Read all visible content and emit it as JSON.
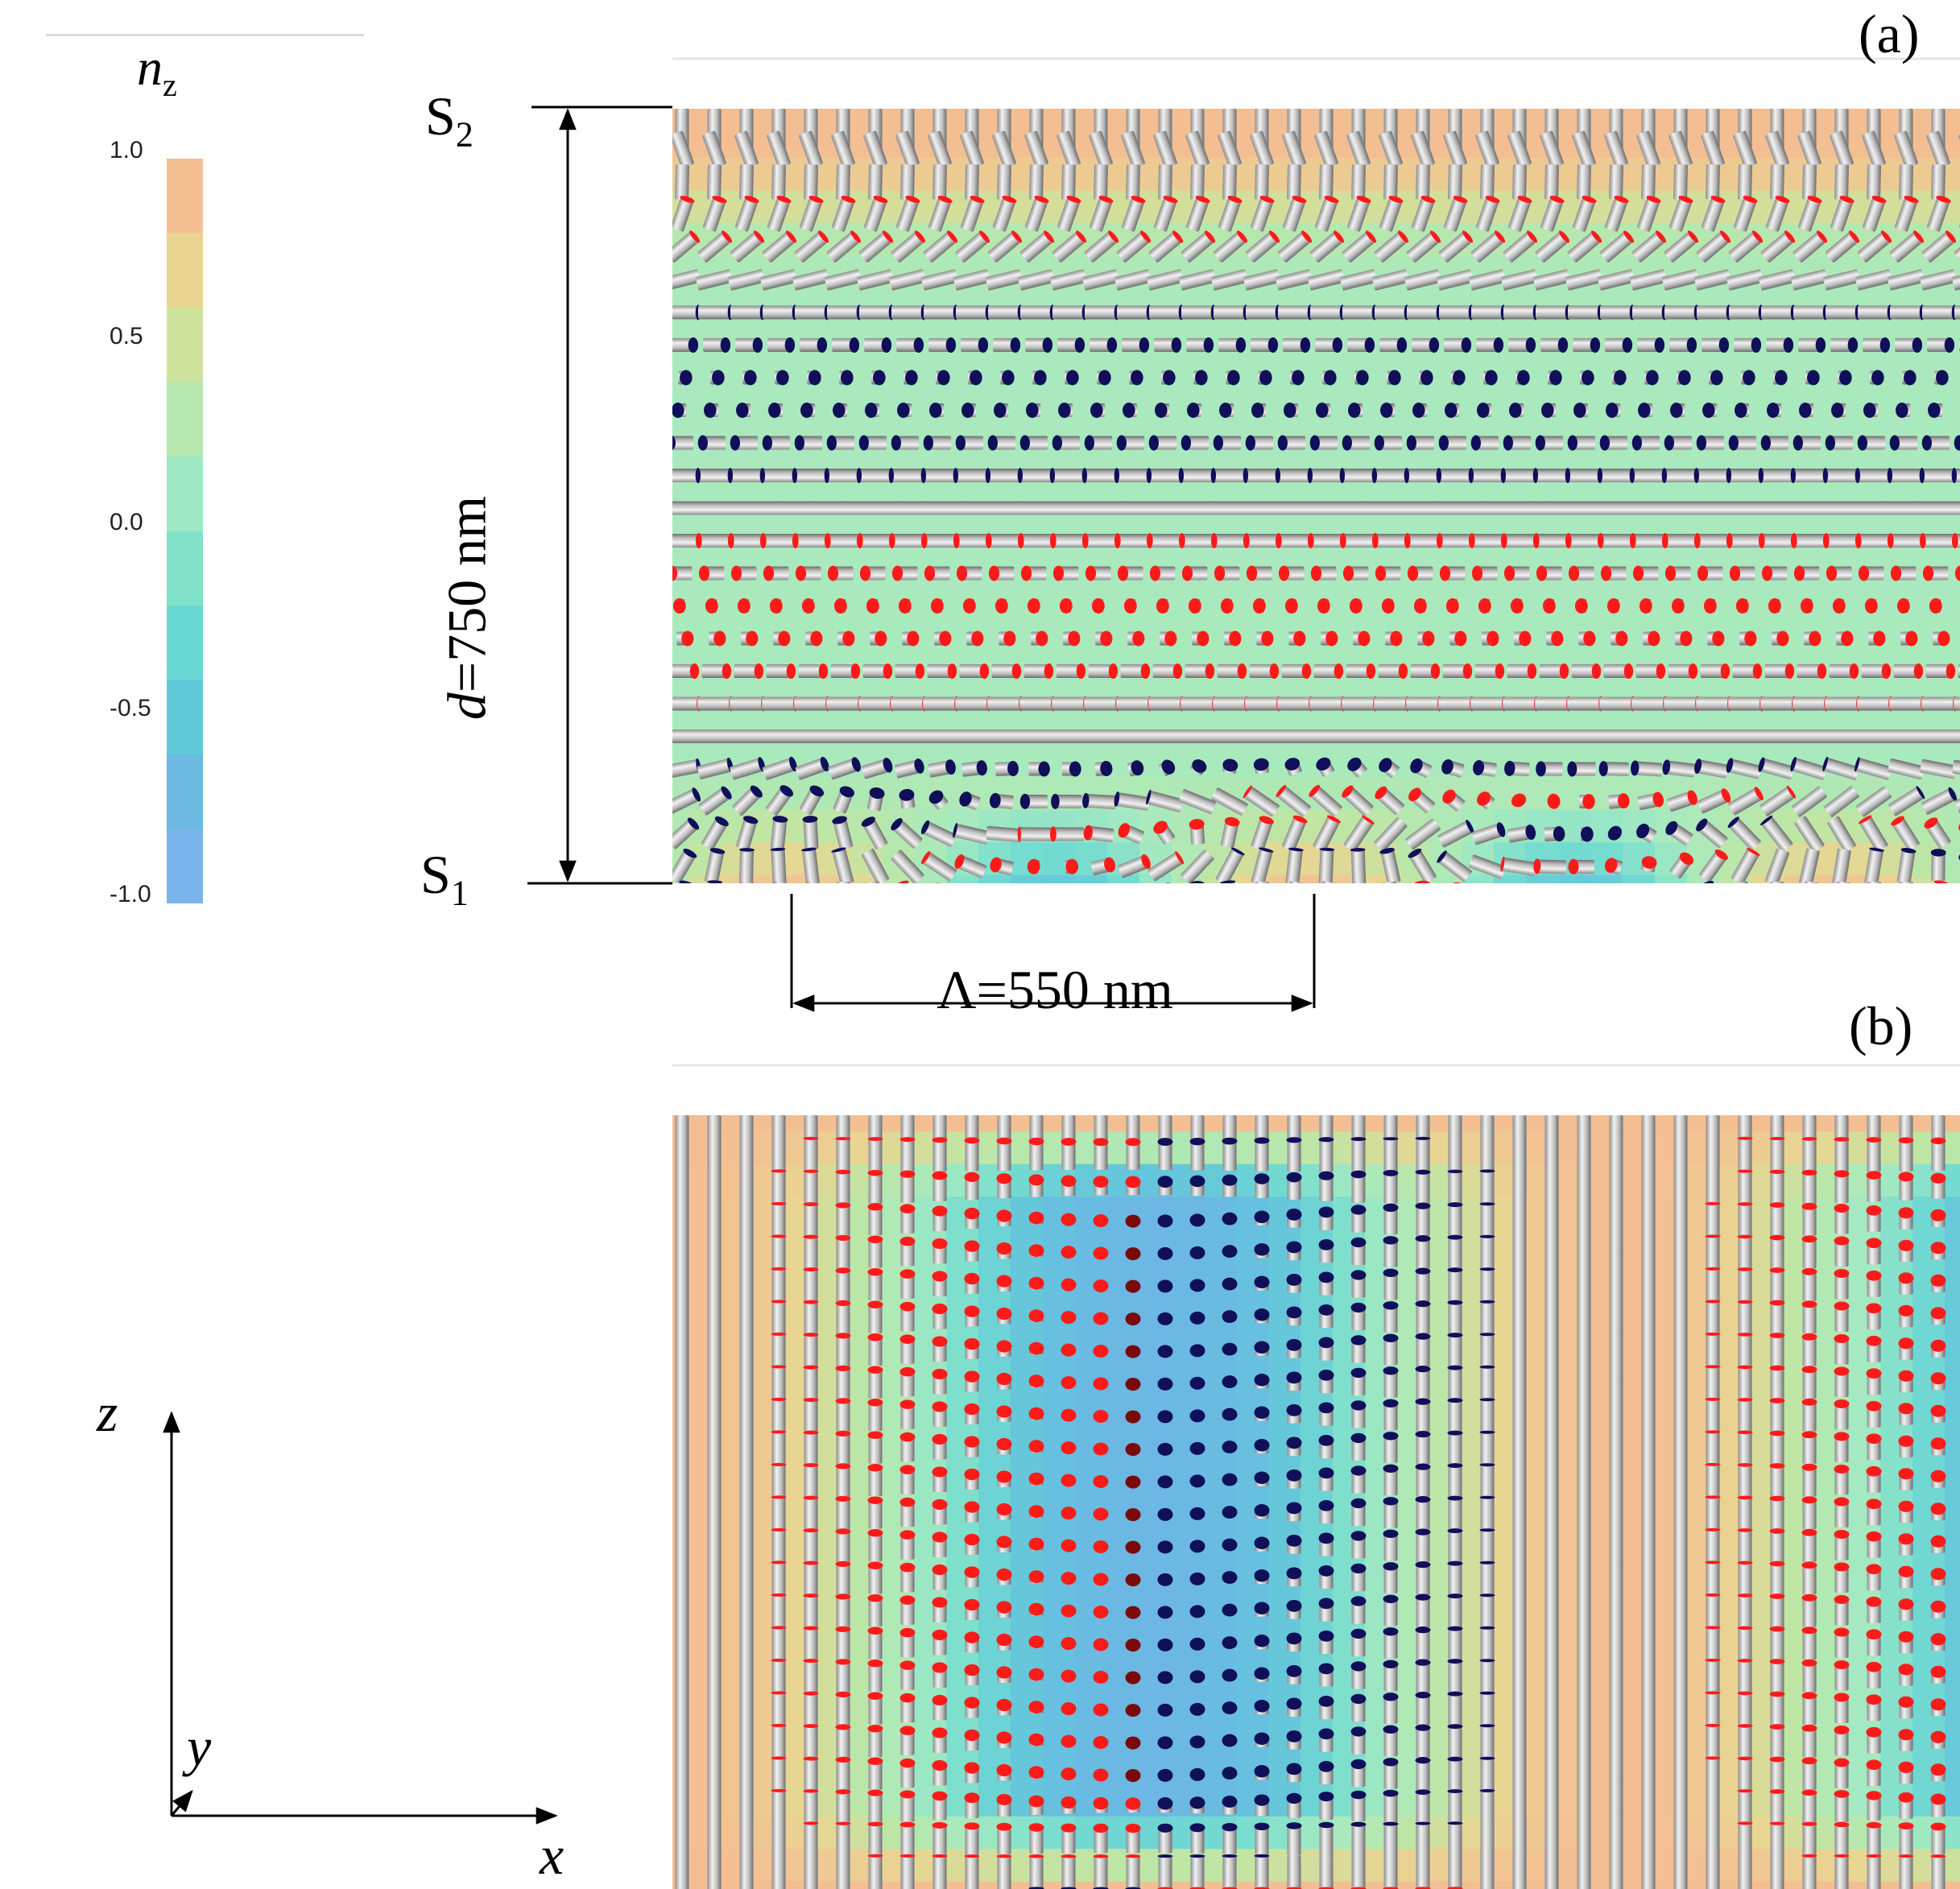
{
  "colorbar": {
    "title_main": "n",
    "title_sub": "z",
    "ticks": [
      "1.0",
      "0.5",
      "0.0",
      "-0.5",
      "-1.0"
    ],
    "tick_values": [
      1.0,
      0.5,
      0.0,
      -0.5,
      -1.0
    ],
    "colors": [
      "#f4be93",
      "#e9d592",
      "#cfe39c",
      "#b6e7b1",
      "#9ee8c4",
      "#82e2c9",
      "#6ad8d2",
      "#62c9d8",
      "#6cb9e1",
      "#7ab4ea"
    ]
  },
  "panel_a": {
    "label": "(a)",
    "top_surface": "S",
    "top_surface_sub": "2",
    "bottom_surface": "S",
    "bottom_surface_sub": "1",
    "thickness_italic": "d",
    "thickness_rest": "=750 nm",
    "period_label": "Λ=550 nm"
  },
  "panel_b": {
    "label": "(b)"
  },
  "axes": {
    "z": "z",
    "x": "x",
    "y": "y"
  },
  "colors": {
    "director_body": "#c8c8c8",
    "end_positive": "#ff1a1a",
    "end_negative": "#0f0f5a",
    "end_dark_red": "#7a0a0a",
    "field_high": "#f4be93",
    "field_mid": "#a6eac0",
    "field_low": "#6cb9e1"
  }
}
